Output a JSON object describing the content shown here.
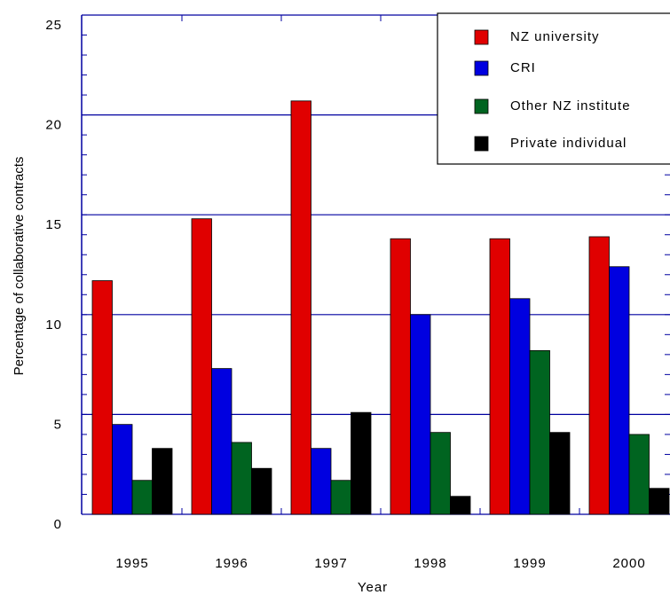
{
  "chart_data": {
    "type": "bar",
    "x_label": "Year",
    "y_label": "Percentage of collaborative contracts",
    "categories": [
      "1995",
      "1996",
      "1997",
      "1998",
      "1999",
      "2000"
    ],
    "series": [
      {
        "name": "NZ university",
        "color": "#e00000",
        "values": [
          11.7,
          14.8,
          20.7,
          13.8,
          13.8,
          13.9
        ]
      },
      {
        "name": "CRI",
        "color": "#0000e0",
        "values": [
          4.5,
          7.3,
          3.3,
          10.0,
          10.8,
          12.4
        ]
      },
      {
        "name": "Other NZ institute",
        "color": "#006420",
        "values": [
          1.7,
          3.6,
          1.7,
          4.1,
          8.2,
          4.0
        ]
      },
      {
        "name": "Private individual",
        "color": "#000000",
        "values": [
          3.3,
          2.3,
          5.1,
          0.9,
          4.1,
          1.3
        ]
      }
    ],
    "ylim": [
      0,
      25
    ],
    "yticks": [
      0,
      5,
      10,
      15,
      20,
      25
    ],
    "grid": true,
    "legend": "upper right"
  }
}
